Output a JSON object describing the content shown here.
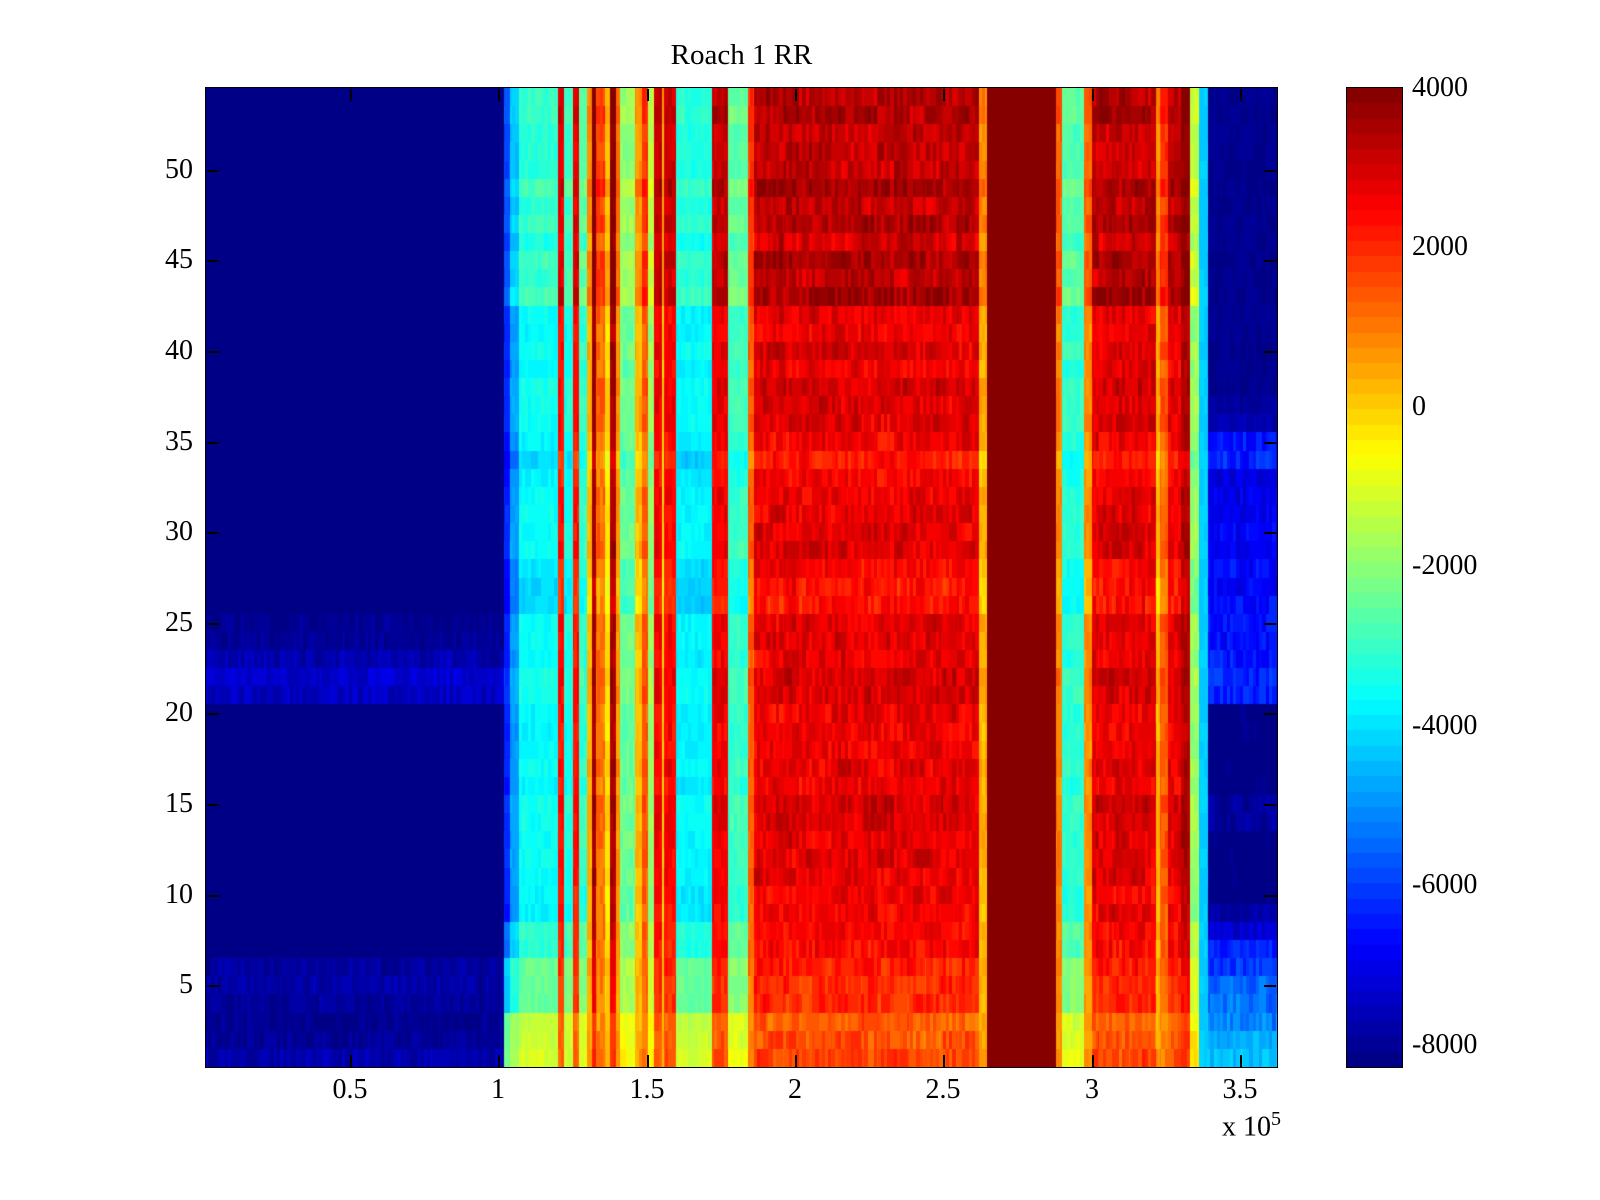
{
  "chart_data": {
    "type": "heatmap",
    "title": "Roach 1 RR",
    "colormap": "jet-64",
    "xlim": [
      1.45,
      362.4
    ],
    "x_unit_multiplier": 100000,
    "x_scale_label": "x 10",
    "x_scale_exp": "5",
    "x_ticks": [
      {
        "value": 50,
        "label": "0.5"
      },
      {
        "value": 100,
        "label": "1"
      },
      {
        "value": 150,
        "label": "1.5"
      },
      {
        "value": 200,
        "label": "2"
      },
      {
        "value": 250,
        "label": "2.5"
      },
      {
        "value": 300,
        "label": "3"
      },
      {
        "value": 350,
        "label": "3.5"
      }
    ],
    "ylim": [
      0.5,
      54.5
    ],
    "rows": 54,
    "y_ticks": [
      {
        "value": 5,
        "label": "5"
      },
      {
        "value": 10,
        "label": "10"
      },
      {
        "value": 15,
        "label": "15"
      },
      {
        "value": 20,
        "label": "20"
      },
      {
        "value": 25,
        "label": "25"
      },
      {
        "value": 30,
        "label": "30"
      },
      {
        "value": 35,
        "label": "35"
      },
      {
        "value": 40,
        "label": "40"
      },
      {
        "value": 45,
        "label": "45"
      },
      {
        "value": 50,
        "label": "50"
      }
    ],
    "caxis": [
      -8280,
      4000
    ],
    "colorbar_ticks": [
      {
        "value": 4000,
        "label": "4000"
      },
      {
        "value": 2000,
        "label": "2000"
      },
      {
        "value": 0,
        "label": "0"
      },
      {
        "value": -2000,
        "label": "-2000"
      },
      {
        "value": -4000,
        "label": "-4000"
      },
      {
        "value": -6000,
        "label": "-6000"
      },
      {
        "value": -8000,
        "label": "-8000"
      }
    ],
    "heatmap_model": {
      "bands_format": "[x0,x1,value,noise,rowmods(1=yes,0=no)] x in units of 1e3; value 9999 = clipped max (dark maroon)",
      "bands": [
        [
          0,
          102,
          -8300,
          80,
          0
        ],
        [
          102,
          104,
          -6300,
          150,
          1
        ],
        [
          104,
          107,
          -4800,
          150,
          1
        ],
        [
          107,
          120,
          -3600,
          220,
          1
        ],
        [
          120,
          122,
          2300,
          300,
          1
        ],
        [
          122,
          125,
          -3400,
          250,
          1
        ],
        [
          125,
          127,
          2300,
          300,
          1
        ],
        [
          127,
          130,
          -3100,
          250,
          1
        ],
        [
          130,
          131.5,
          300,
          200,
          1
        ],
        [
          131.5,
          133,
          3600,
          250,
          1
        ],
        [
          133,
          136,
          1200,
          400,
          1
        ],
        [
          136,
          137.5,
          -200,
          200,
          1
        ],
        [
          137.5,
          139.5,
          3500,
          250,
          1
        ],
        [
          139.5,
          141,
          700,
          250,
          1
        ],
        [
          141,
          146,
          -2400,
          300,
          1
        ],
        [
          146,
          148.5,
          200,
          300,
          1
        ],
        [
          148.5,
          150.5,
          1400,
          300,
          1
        ],
        [
          150.5,
          152.5,
          -1900,
          300,
          1
        ],
        [
          152.5,
          155,
          2600,
          300,
          1
        ],
        [
          155,
          155.7,
          0,
          200,
          1
        ],
        [
          155.7,
          160,
          2500,
          350,
          1
        ],
        [
          160,
          172,
          -3750,
          220,
          1
        ],
        [
          172,
          177.5,
          2650,
          350,
          1
        ],
        [
          177.5,
          184,
          -3000,
          250,
          1
        ],
        [
          184,
          186,
          1300,
          300,
          1
        ],
        [
          186,
          262,
          2750,
          420,
          1
        ],
        [
          262,
          264.5,
          350,
          250,
          1
        ],
        [
          264.5,
          288,
          9999,
          0,
          0
        ],
        [
          288,
          290,
          900,
          250,
          1
        ],
        [
          290,
          297.5,
          -3150,
          250,
          1
        ],
        [
          297.5,
          300,
          800,
          250,
          1
        ],
        [
          300,
          321.5,
          2800,
          420,
          1
        ],
        [
          321.5,
          323,
          300,
          250,
          1
        ],
        [
          323,
          325.5,
          1400,
          350,
          1
        ],
        [
          325.5,
          330,
          2700,
          400,
          1
        ],
        [
          330,
          333,
          3400,
          300,
          1
        ],
        [
          333,
          336,
          -1800,
          300,
          1
        ],
        [
          336,
          339,
          -4300,
          150,
          0
        ]
      ],
      "left_blue_region": {
        "x0": 0,
        "x1": 102,
        "default_value": -8300,
        "default_noise": 80,
        "rows": {
          "1": [
            -7700,
            320
          ],
          "2": [
            -7950,
            250
          ],
          "3": [
            -8050,
            200
          ],
          "4": [
            -7950,
            250
          ],
          "5": [
            -7800,
            300
          ],
          "6": [
            -7900,
            280
          ],
          "21": [
            -7500,
            320
          ],
          "22": [
            -7300,
            350
          ],
          "23": [
            -7700,
            300
          ],
          "24": [
            -8000,
            220
          ],
          "25": [
            -8050,
            200
          ]
        }
      },
      "right_blue_region": {
        "x0": 339,
        "x1": 362.4,
        "default_value": -8100,
        "default_noise": 160,
        "rows": {
          "1": [
            -4400,
            350
          ],
          "2": [
            -4600,
            350
          ],
          "3": [
            -5200,
            450
          ],
          "4": [
            -5400,
            450
          ],
          "5": [
            -5600,
            450
          ],
          "6": [
            -6100,
            450
          ],
          "7": [
            -6400,
            400
          ],
          "8": [
            -7300,
            350
          ],
          "9": [
            -7800,
            300
          ],
          "10": [
            -8250,
            180
          ],
          "11": [
            -8250,
            180
          ],
          "12": [
            -8250,
            180
          ],
          "13": [
            -8250,
            180
          ],
          "14": [
            -7900,
            350
          ],
          "15": [
            -7900,
            350
          ],
          "16": [
            -8250,
            180
          ],
          "17": [
            -8250,
            180
          ],
          "18": [
            -8250,
            180
          ],
          "19": [
            -8250,
            180
          ],
          "20": [
            -8250,
            180
          ],
          "21": [
            -6400,
            450
          ],
          "22": [
            -6300,
            450
          ],
          "23": [
            -6500,
            450
          ],
          "24": [
            -6600,
            400
          ],
          "25": [
            -6500,
            450
          ],
          "26": [
            -6600,
            400
          ],
          "27": [
            -6800,
            400
          ],
          "28": [
            -6700,
            400
          ],
          "29": [
            -6900,
            350
          ],
          "30": [
            -6800,
            400
          ],
          "31": [
            -7000,
            350
          ],
          "32": [
            -7000,
            350
          ],
          "33": [
            -7100,
            350
          ],
          "34": [
            -6400,
            550
          ],
          "35": [
            -6500,
            550
          ],
          "36": [
            -7700,
            250
          ],
          "37": [
            -7900,
            220
          ]
        }
      },
      "row_rules": {
        "gain": [
          {
            "rows": [
              1,
              3
            ],
            "gain": 0.42
          },
          {
            "rows": [
              4,
              6
            ],
            "gain": 0.7
          },
          {
            "rows": [
              7,
              8
            ],
            "gain": 0.88
          }
        ],
        "offset": [
          {
            "rows": [
              1,
              2
            ],
            "offset": 300
          },
          {
            "rows": [
              26,
              28
            ],
            "offset": -450
          },
          {
            "rows": [
              33,
              35
            ],
            "offset": -350
          },
          {
            "rows": [
              43,
              54
            ],
            "offset": 380,
            "alt": 260
          }
        ],
        "row_jitter": 220
      }
    }
  }
}
